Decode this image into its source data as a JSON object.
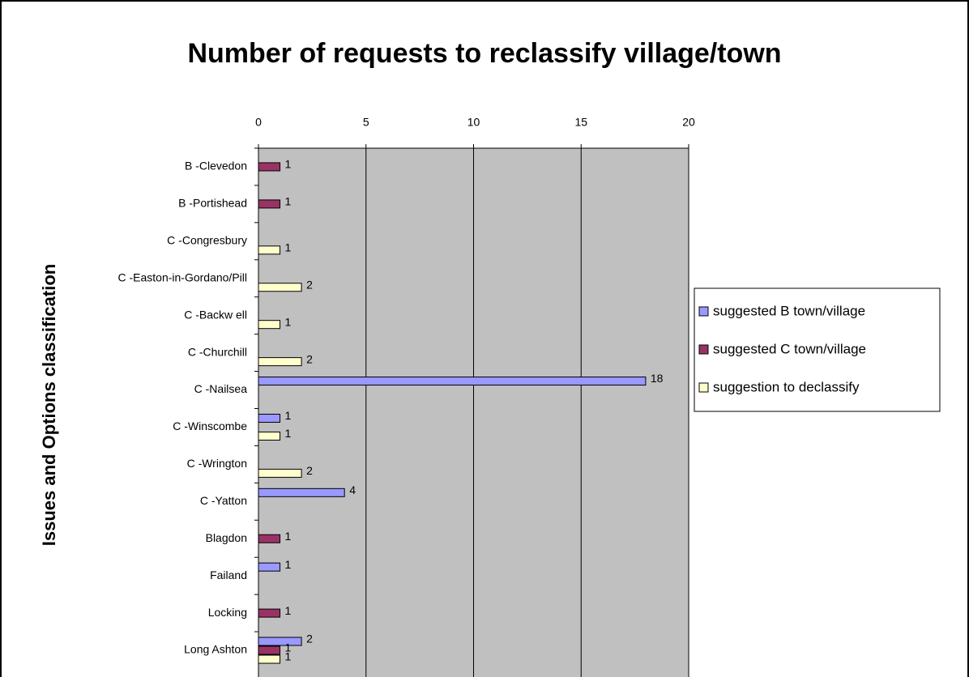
{
  "chart_data": {
    "type": "hbar",
    "title": "Number of requests to reclassify village/town",
    "ylabel": "Issues and Options classification",
    "categories": [
      "B -Clevedon",
      "B -Portishead",
      "C -Congresbury",
      "C -Easton-in-Gordano/Pill",
      "C -Backw ell",
      "C -Churchill",
      "C -Nailsea",
      "C -Winscombe",
      "C -Wrington",
      "C -Yatton",
      "Blagdon",
      "Failand",
      "Locking",
      "Long Ashton"
    ],
    "series": [
      {
        "name": "suggested B town/village",
        "color": "#9999ff",
        "values": [
          null,
          null,
          null,
          null,
          null,
          null,
          18,
          1,
          null,
          4,
          null,
          1,
          null,
          2
        ]
      },
      {
        "name": "suggested C town/village",
        "color": "#993366",
        "values": [
          1,
          1,
          null,
          null,
          null,
          null,
          null,
          null,
          null,
          null,
          1,
          null,
          1,
          1
        ]
      },
      {
        "name": "suggestion to declassify",
        "color": "#ffffcc",
        "values": [
          null,
          null,
          1,
          2,
          1,
          2,
          null,
          1,
          2,
          null,
          null,
          null,
          null,
          1
        ]
      }
    ],
    "xlim": [
      0,
      20
    ],
    "xticks": [
      0,
      5,
      10,
      15,
      20
    ],
    "grid": true,
    "legend": "right"
  }
}
